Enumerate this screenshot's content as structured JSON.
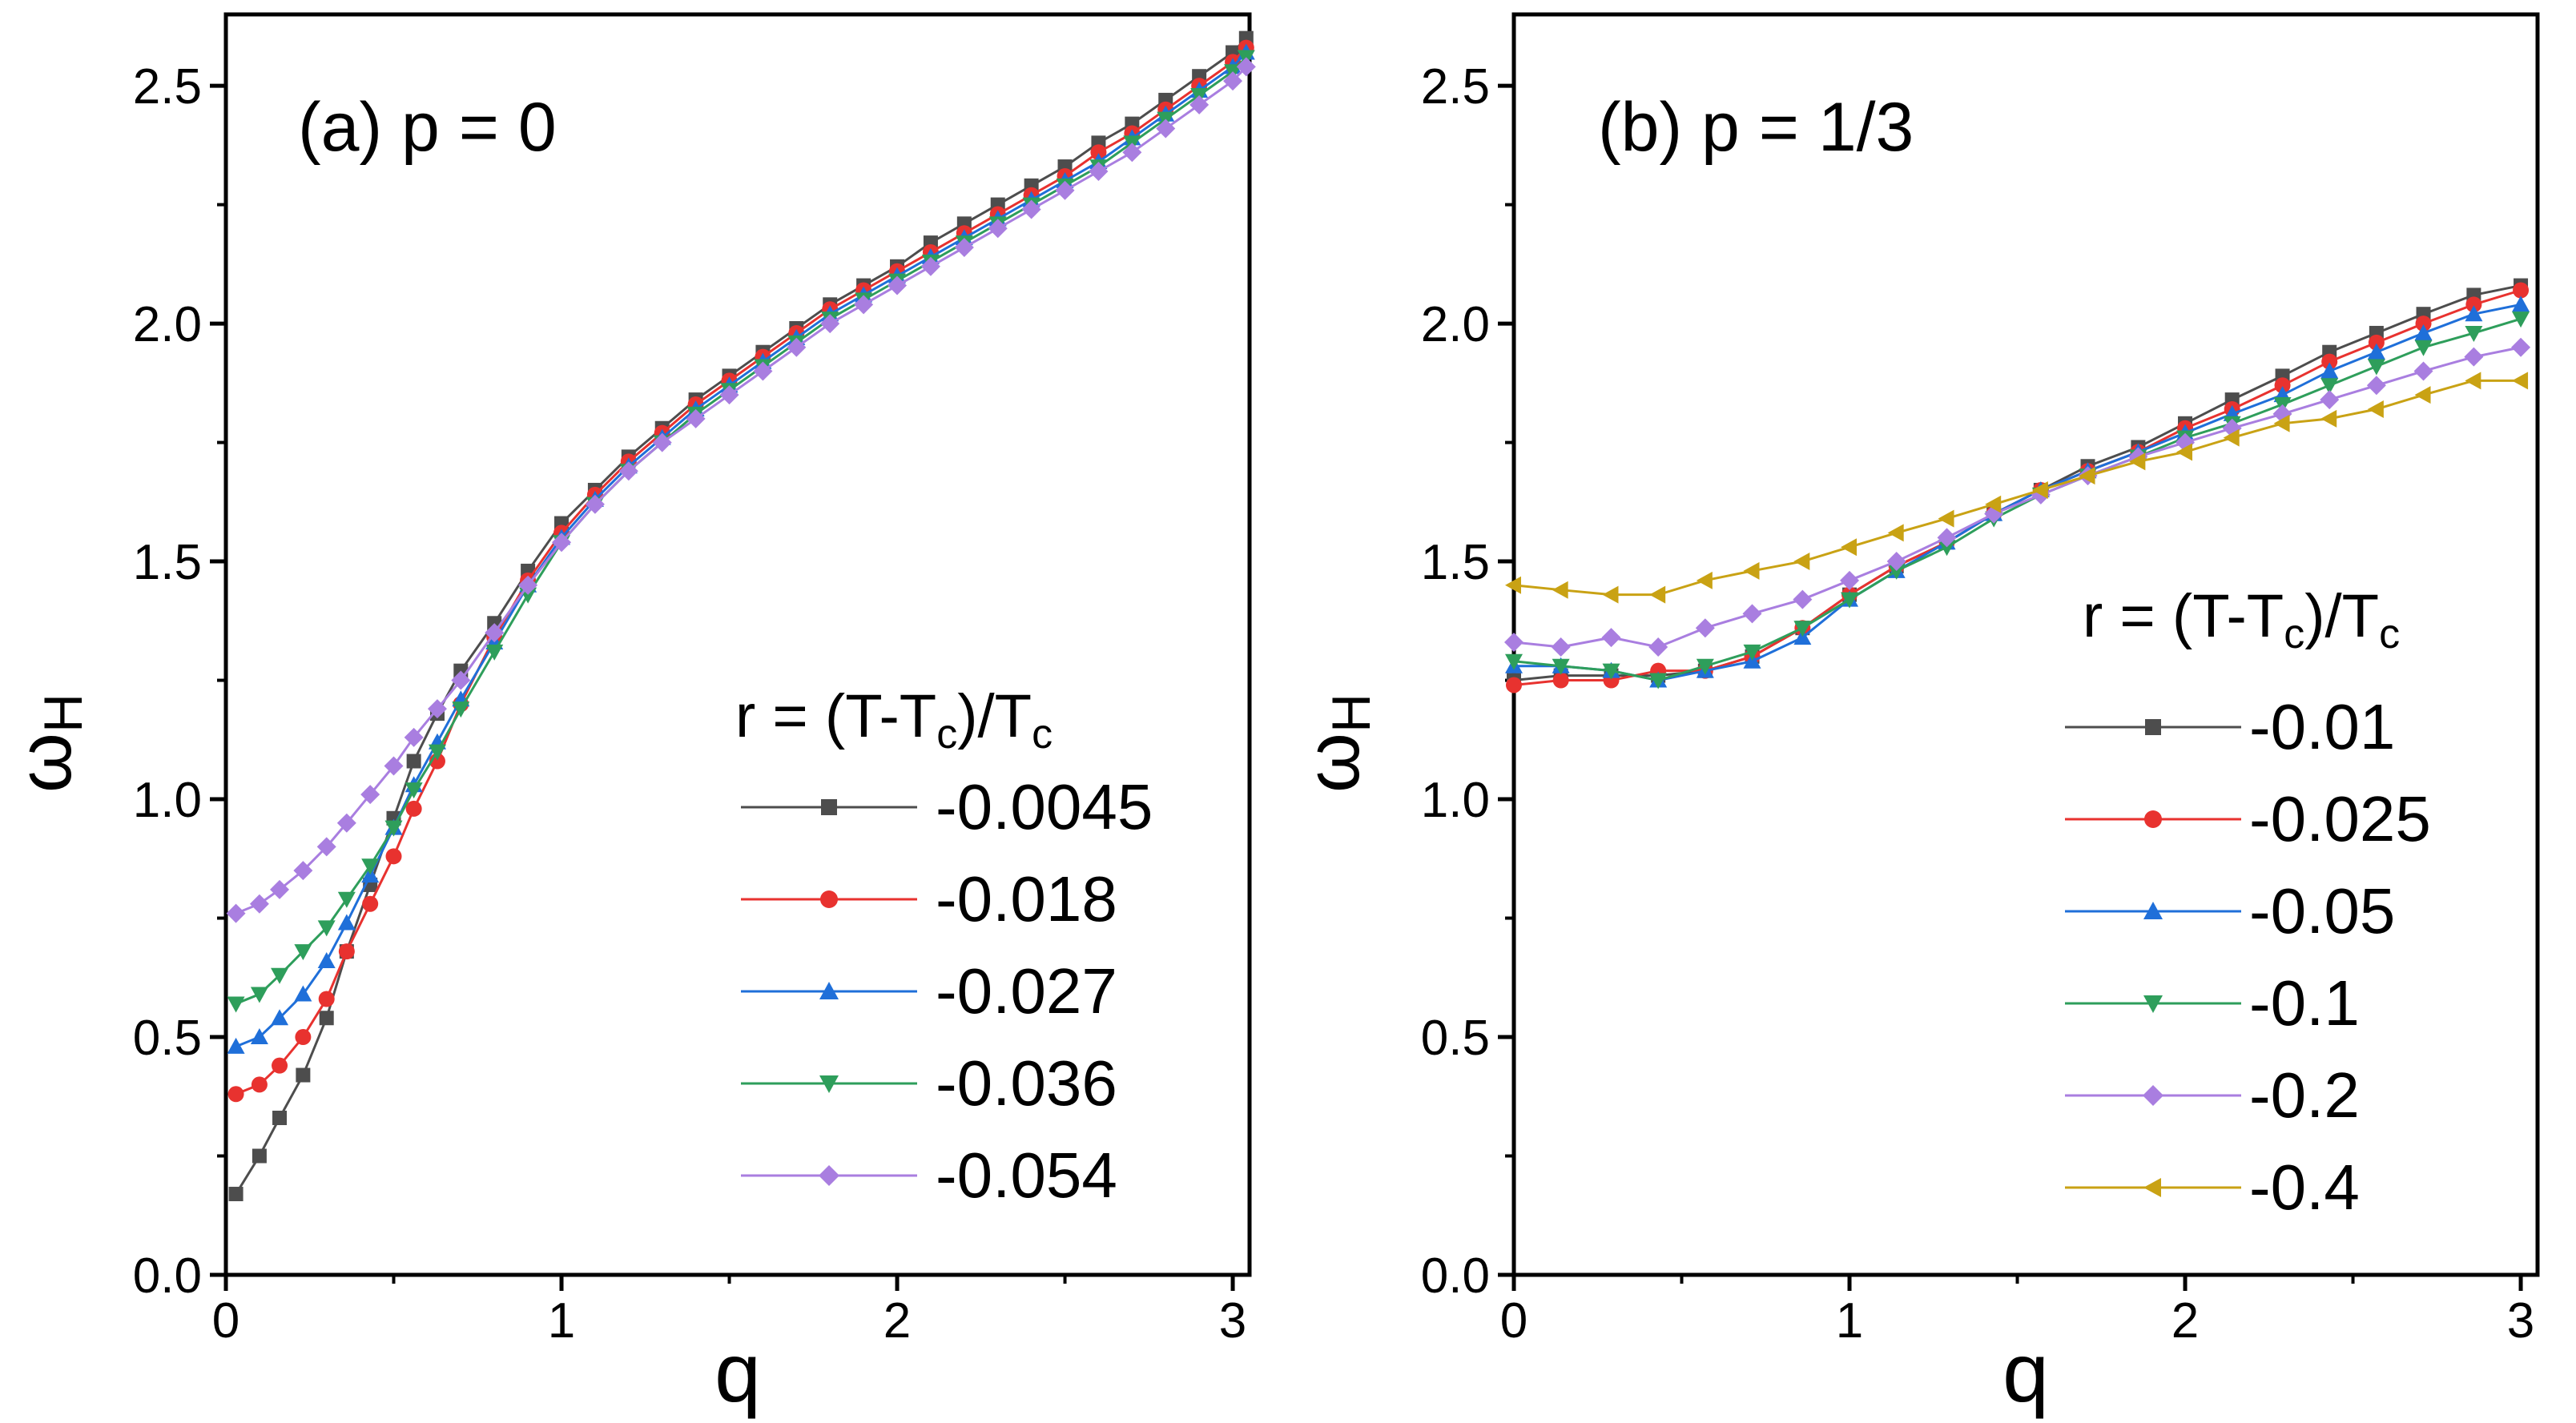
{
  "chart_data": [
    {
      "type": "line",
      "panel_label": "(a) p = 0",
      "xlabel": "q",
      "ylabel_main": "ω",
      "ylabel_sub": "H",
      "xlim": [
        0,
        3.05
      ],
      "ylim": [
        0,
        2.65
      ],
      "xticks": [
        0,
        1,
        2,
        3
      ],
      "yticks": [
        0.0,
        0.5,
        1.0,
        1.5,
        2.0,
        2.5
      ],
      "xtick_labels": [
        "0",
        "1",
        "2",
        "3"
      ],
      "ytick_labels": [
        "0.0",
        "0.5",
        "1.0",
        "1.5",
        "2.0",
        "2.5"
      ],
      "legend": {
        "title_parts": [
          "r = (T-T",
          "c",
          ")/T",
          "c"
        ],
        "placement": "lower-right"
      },
      "series": [
        {
          "name": "-0.0045",
          "color": "#4d4d4d",
          "marker": "square",
          "x": [
            0.03,
            0.1,
            0.16,
            0.23,
            0.3,
            0.36,
            0.43,
            0.5,
            0.56,
            0.63,
            0.7,
            0.8,
            0.9,
            1.0,
            1.1,
            1.2,
            1.3,
            1.4,
            1.5,
            1.6,
            1.7,
            1.8,
            1.9,
            2.0,
            2.1,
            2.2,
            2.3,
            2.4,
            2.5,
            2.6,
            2.7,
            2.8,
            2.9,
            3.0,
            3.04
          ],
          "y": [
            0.17,
            0.25,
            0.33,
            0.42,
            0.54,
            0.68,
            0.82,
            0.96,
            1.08,
            1.18,
            1.27,
            1.37,
            1.48,
            1.58,
            1.65,
            1.72,
            1.78,
            1.84,
            1.89,
            1.94,
            1.99,
            2.04,
            2.08,
            2.12,
            2.17,
            2.21,
            2.25,
            2.29,
            2.33,
            2.38,
            2.42,
            2.47,
            2.52,
            2.57,
            2.6
          ]
        },
        {
          "name": "-0.018",
          "color": "#e8322f",
          "marker": "circle",
          "x": [
            0.03,
            0.1,
            0.16,
            0.23,
            0.3,
            0.36,
            0.43,
            0.5,
            0.56,
            0.63,
            0.7,
            0.8,
            0.9,
            1.0,
            1.1,
            1.2,
            1.3,
            1.4,
            1.5,
            1.6,
            1.7,
            1.8,
            1.9,
            2.0,
            2.1,
            2.2,
            2.3,
            2.4,
            2.5,
            2.6,
            2.7,
            2.8,
            2.9,
            3.0,
            3.04
          ],
          "y": [
            0.38,
            0.4,
            0.44,
            0.5,
            0.58,
            0.68,
            0.78,
            0.88,
            0.98,
            1.08,
            1.2,
            1.34,
            1.46,
            1.56,
            1.64,
            1.71,
            1.77,
            1.83,
            1.88,
            1.93,
            1.98,
            2.03,
            2.07,
            2.11,
            2.15,
            2.19,
            2.23,
            2.27,
            2.31,
            2.36,
            2.4,
            2.45,
            2.5,
            2.55,
            2.58
          ]
        },
        {
          "name": "-0.027",
          "color": "#1f6fd9",
          "marker": "triangle-up",
          "x": [
            0.03,
            0.1,
            0.16,
            0.23,
            0.3,
            0.36,
            0.43,
            0.5,
            0.56,
            0.63,
            0.7,
            0.8,
            0.9,
            1.0,
            1.1,
            1.2,
            1.3,
            1.4,
            1.5,
            1.6,
            1.7,
            1.8,
            1.9,
            2.0,
            2.1,
            2.2,
            2.3,
            2.4,
            2.5,
            2.6,
            2.7,
            2.8,
            2.9,
            3.0,
            3.04
          ],
          "y": [
            0.48,
            0.5,
            0.54,
            0.59,
            0.66,
            0.74,
            0.84,
            0.94,
            1.03,
            1.12,
            1.21,
            1.33,
            1.45,
            1.55,
            1.63,
            1.7,
            1.76,
            1.82,
            1.87,
            1.92,
            1.97,
            2.02,
            2.06,
            2.1,
            2.14,
            2.18,
            2.22,
            2.26,
            2.3,
            2.34,
            2.39,
            2.44,
            2.49,
            2.54,
            2.57
          ]
        },
        {
          "name": "-0.036",
          "color": "#2e9e5b",
          "marker": "triangle-down",
          "x": [
            0.03,
            0.1,
            0.16,
            0.23,
            0.3,
            0.36,
            0.43,
            0.5,
            0.56,
            0.63,
            0.7,
            0.8,
            0.9,
            1.0,
            1.1,
            1.2,
            1.3,
            1.4,
            1.5,
            1.6,
            1.7,
            1.8,
            1.9,
            2.0,
            2.1,
            2.2,
            2.3,
            2.4,
            2.5,
            2.6,
            2.7,
            2.8,
            2.9,
            3.0,
            3.04
          ],
          "y": [
            0.57,
            0.59,
            0.63,
            0.68,
            0.73,
            0.79,
            0.86,
            0.94,
            1.02,
            1.1,
            1.19,
            1.31,
            1.43,
            1.54,
            1.62,
            1.69,
            1.75,
            1.81,
            1.86,
            1.91,
            1.96,
            2.01,
            2.05,
            2.09,
            2.13,
            2.17,
            2.21,
            2.25,
            2.29,
            2.33,
            2.38,
            2.43,
            2.48,
            2.53,
            2.56
          ]
        },
        {
          "name": "-0.054",
          "color": "#a97ee0",
          "marker": "diamond",
          "x": [
            0.03,
            0.1,
            0.16,
            0.23,
            0.3,
            0.36,
            0.43,
            0.5,
            0.56,
            0.63,
            0.7,
            0.8,
            0.9,
            1.0,
            1.1,
            1.2,
            1.3,
            1.4,
            1.5,
            1.6,
            1.7,
            1.8,
            1.9,
            2.0,
            2.1,
            2.2,
            2.3,
            2.4,
            2.5,
            2.6,
            2.7,
            2.8,
            2.9,
            3.0,
            3.04
          ],
          "y": [
            0.76,
            0.78,
            0.81,
            0.85,
            0.9,
            0.95,
            1.01,
            1.07,
            1.13,
            1.19,
            1.25,
            1.35,
            1.45,
            1.54,
            1.62,
            1.69,
            1.75,
            1.8,
            1.85,
            1.9,
            1.95,
            2.0,
            2.04,
            2.08,
            2.12,
            2.16,
            2.2,
            2.24,
            2.28,
            2.32,
            2.36,
            2.41,
            2.46,
            2.51,
            2.54
          ]
        }
      ]
    },
    {
      "type": "line",
      "panel_label": "(b) p = 1/3",
      "xlabel": "q",
      "ylabel_main": "ω",
      "ylabel_sub": "H",
      "xlim": [
        0,
        3.05
      ],
      "ylim": [
        0,
        2.65
      ],
      "xticks": [
        0,
        1,
        2,
        3
      ],
      "yticks": [
        0.0,
        0.5,
        1.0,
        1.5,
        2.0,
        2.5
      ],
      "xtick_labels": [
        "0",
        "1",
        "2",
        "3"
      ],
      "ytick_labels": [
        "0.0",
        "0.5",
        "1.0",
        "1.5",
        "2.0",
        "2.5"
      ],
      "legend": {
        "title_parts": [
          "r = (T-T",
          "c",
          ")/T",
          "c"
        ],
        "placement": "lower-right"
      },
      "series": [
        {
          "name": "-0.01",
          "color": "#4d4d4d",
          "marker": "square",
          "x": [
            0,
            0.14,
            0.29,
            0.43,
            0.57,
            0.71,
            0.86,
            1.0,
            1.14,
            1.29,
            1.43,
            1.57,
            1.71,
            1.86,
            2.0,
            2.14,
            2.29,
            2.43,
            2.57,
            2.71,
            2.86,
            3.0
          ],
          "y": [
            1.25,
            1.26,
            1.26,
            1.26,
            1.27,
            1.3,
            1.36,
            1.43,
            1.49,
            1.54,
            1.6,
            1.65,
            1.7,
            1.74,
            1.79,
            1.84,
            1.89,
            1.94,
            1.98,
            2.02,
            2.06,
            2.08
          ]
        },
        {
          "name": "-0.025",
          "color": "#e8322f",
          "marker": "circle",
          "x": [
            0,
            0.14,
            0.29,
            0.43,
            0.57,
            0.71,
            0.86,
            1.0,
            1.14,
            1.29,
            1.43,
            1.57,
            1.71,
            1.86,
            2.0,
            2.14,
            2.29,
            2.43,
            2.57,
            2.71,
            2.86,
            3.0
          ],
          "y": [
            1.24,
            1.25,
            1.25,
            1.27,
            1.27,
            1.3,
            1.36,
            1.43,
            1.49,
            1.54,
            1.6,
            1.65,
            1.69,
            1.73,
            1.78,
            1.82,
            1.87,
            1.92,
            1.96,
            2.0,
            2.04,
            2.07
          ]
        },
        {
          "name": "-0.05",
          "color": "#1f6fd9",
          "marker": "triangle-up",
          "x": [
            0,
            0.14,
            0.29,
            0.43,
            0.57,
            0.71,
            0.86,
            1.0,
            1.14,
            1.29,
            1.43,
            1.57,
            1.71,
            1.86,
            2.0,
            2.14,
            2.29,
            2.43,
            2.57,
            2.71,
            2.86,
            3.0
          ],
          "y": [
            1.28,
            1.28,
            1.27,
            1.25,
            1.27,
            1.29,
            1.34,
            1.42,
            1.48,
            1.54,
            1.6,
            1.65,
            1.69,
            1.73,
            1.77,
            1.81,
            1.85,
            1.9,
            1.94,
            1.98,
            2.02,
            2.04
          ]
        },
        {
          "name": "-0.1",
          "color": "#2e9e5b",
          "marker": "triangle-down",
          "x": [
            0,
            0.14,
            0.29,
            0.43,
            0.57,
            0.71,
            0.86,
            1.0,
            1.14,
            1.29,
            1.43,
            1.57,
            1.71,
            1.86,
            2.0,
            2.14,
            2.29,
            2.43,
            2.57,
            2.71,
            2.86,
            3.0
          ],
          "y": [
            1.29,
            1.28,
            1.27,
            1.25,
            1.28,
            1.31,
            1.36,
            1.42,
            1.48,
            1.53,
            1.59,
            1.64,
            1.68,
            1.72,
            1.76,
            1.79,
            1.83,
            1.87,
            1.91,
            1.95,
            1.98,
            2.01
          ]
        },
        {
          "name": "-0.2",
          "color": "#a97ee0",
          "marker": "diamond",
          "x": [
            0,
            0.14,
            0.29,
            0.43,
            0.57,
            0.71,
            0.86,
            1.0,
            1.14,
            1.29,
            1.43,
            1.57,
            1.71,
            1.86,
            2.0,
            2.14,
            2.29,
            2.43,
            2.57,
            2.71,
            2.86,
            3.0
          ],
          "y": [
            1.33,
            1.32,
            1.34,
            1.32,
            1.36,
            1.39,
            1.42,
            1.46,
            1.5,
            1.55,
            1.6,
            1.64,
            1.68,
            1.72,
            1.75,
            1.78,
            1.81,
            1.84,
            1.87,
            1.9,
            1.93,
            1.95
          ]
        },
        {
          "name": "-0.4",
          "color": "#c9a214",
          "marker": "triangle-left",
          "x": [
            0,
            0.14,
            0.29,
            0.43,
            0.57,
            0.71,
            0.86,
            1.0,
            1.14,
            1.29,
            1.43,
            1.57,
            1.71,
            1.86,
            2.0,
            2.14,
            2.29,
            2.43,
            2.57,
            2.71,
            2.86,
            3.0
          ],
          "y": [
            1.45,
            1.44,
            1.43,
            1.43,
            1.46,
            1.48,
            1.5,
            1.53,
            1.56,
            1.59,
            1.62,
            1.65,
            1.68,
            1.71,
            1.73,
            1.76,
            1.79,
            1.8,
            1.82,
            1.85,
            1.88,
            1.88
          ]
        }
      ]
    }
  ]
}
